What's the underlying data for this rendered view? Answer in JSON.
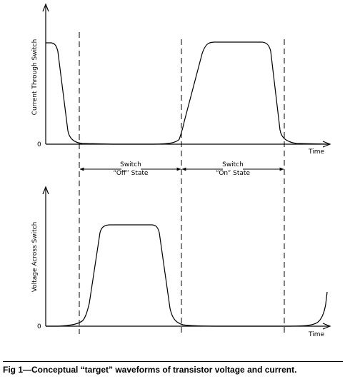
{
  "top_plot": {
    "ylabel": "Current Through Switch",
    "zero_label": "0",
    "xlabel": "Time"
  },
  "bottom_plot": {
    "ylabel": "Voltage Across Switch",
    "zero_label": "0",
    "xlabel": "Time"
  },
  "states": {
    "off_line1": "Switch",
    "off_line2": "“Off” State",
    "on_line1": "Switch",
    "on_line2": "“On” State"
  },
  "caption": "Fig 1—Conceptual “target” waveforms of transistor voltage and current."
}
